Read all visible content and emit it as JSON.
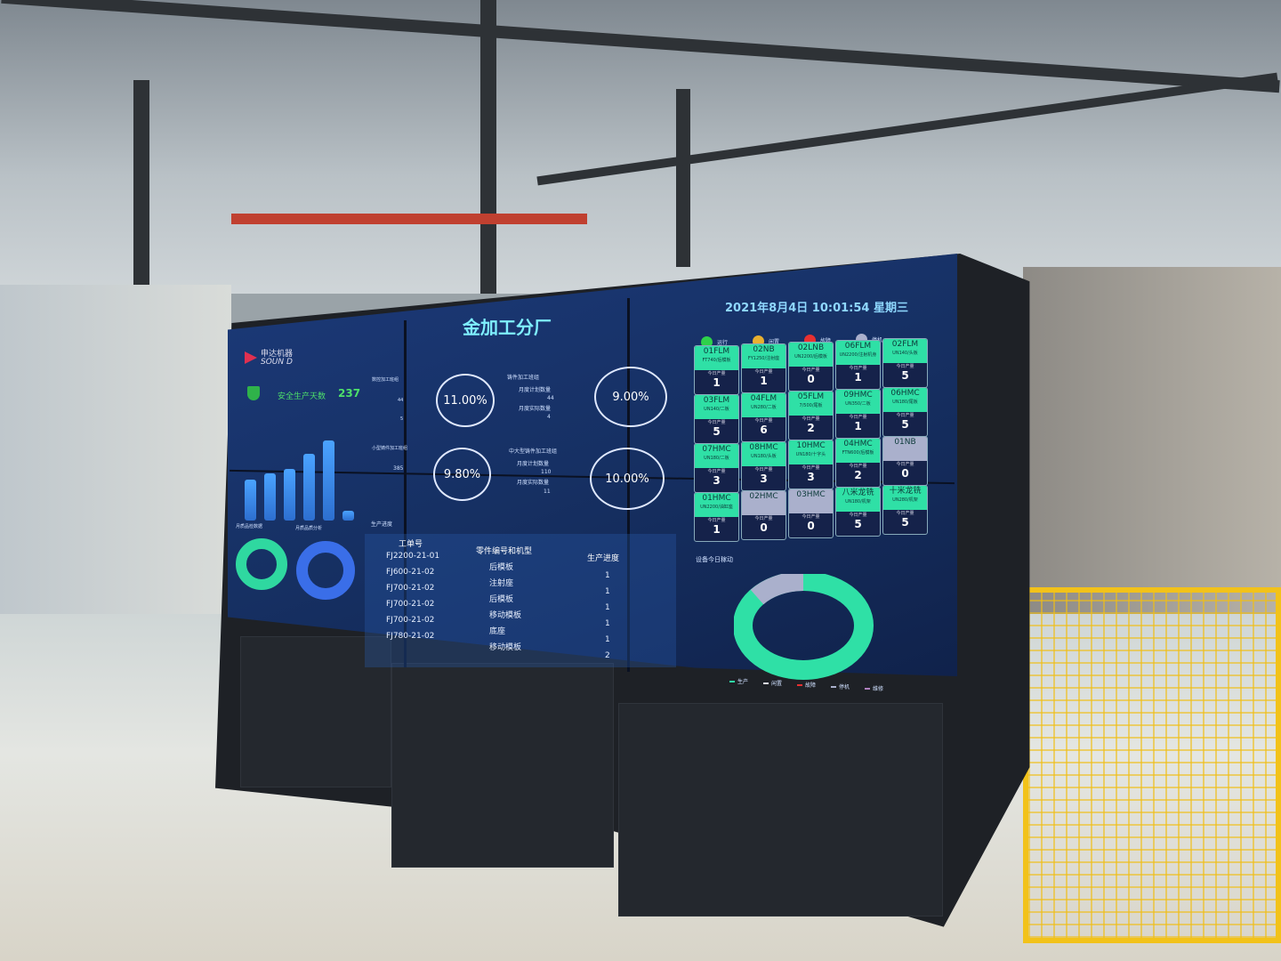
{
  "header": {
    "title": "金加工分厂",
    "datetime": "2021年8月4日 10:01:54 星期三"
  },
  "logo": {
    "cn": "申达机器",
    "en": "SOUN D"
  },
  "safety": {
    "label": "安全生产天数",
    "value": "237"
  },
  "bar_chart": {
    "values": [
      237,
      271,
      300,
      389,
      464,
      58
    ]
  },
  "donuts": {
    "left_title": "月质品检数据",
    "right_title": "月质品质分析"
  },
  "teams": [
    {
      "name": "铸件加工班组",
      "plan_label": "月度计划数量",
      "plan": "44",
      "actual_label": "月度实际数量",
      "actual": "4",
      "rate": "9.00%"
    },
    {
      "name": "中大型铸件加工班组",
      "plan_label": "月度计划数量",
      "plan": "110",
      "actual_label": "月度实际数量",
      "actual": "11",
      "rate": "10.00%"
    },
    {
      "name": "小型铸件加工班组",
      "plan": "385",
      "rate": "9.80%"
    },
    {
      "name": "数控加工班组",
      "plan": "44",
      "actual": "5",
      "rate": "11.00%"
    }
  ],
  "progress": {
    "title": "生产进度",
    "headers": [
      "工单号",
      "零件编号和机型",
      "生产进度"
    ],
    "rows": [
      [
        "FJ2200-21-01",
        "后模板",
        "1"
      ],
      [
        "FJ600-21-02",
        "注射座",
        "1"
      ],
      [
        "FJ700-21-02",
        "后模板",
        "1"
      ],
      [
        "FJ700-21-02",
        "移动模板",
        "1"
      ],
      [
        "FJ700-21-02",
        "底座",
        "1"
      ],
      [
        "FJ780-21-02",
        "移动模板",
        "2"
      ]
    ]
  },
  "legend": [
    {
      "label": "运行",
      "color": "#2ed24a"
    },
    {
      "label": "闲置",
      "color": "#e8b030"
    },
    {
      "label": "故障",
      "color": "#e83030"
    },
    {
      "label": "停机",
      "color": "#aab0cc"
    }
  ],
  "today_label": "今日产量",
  "machines": [
    {
      "id": "01FLM",
      "model": "FT740/后模板",
      "qty": "1",
      "status": "run"
    },
    {
      "id": "02NB",
      "model": "FY1250/注射座",
      "qty": "1",
      "status": "run"
    },
    {
      "id": "02LNB",
      "model": "UN2200/后模板",
      "qty": "0",
      "status": "run"
    },
    {
      "id": "06FLM",
      "model": "UN2200/注射机身",
      "qty": "1",
      "status": "run"
    },
    {
      "id": "02FLM",
      "model": "UN140/头板",
      "qty": "5",
      "status": "run"
    },
    {
      "id": "03FLM",
      "model": "UN140/二板",
      "qty": "5",
      "status": "run"
    },
    {
      "id": "04FLM",
      "model": "UN280/二板",
      "qty": "6",
      "status": "run"
    },
    {
      "id": "05FLM",
      "model": "7/500/尾板",
      "qty": "2",
      "status": "run"
    },
    {
      "id": "09HMC",
      "model": "UN350/二板",
      "qty": "1",
      "status": "run"
    },
    {
      "id": "06HMC",
      "model": "UN180/尾板",
      "qty": "5",
      "status": "run"
    },
    {
      "id": "07HMC",
      "model": "UN180/二板",
      "qty": "3",
      "status": "run"
    },
    {
      "id": "08HMC",
      "model": "UN180/头板",
      "qty": "3",
      "status": "run"
    },
    {
      "id": "10HMC",
      "model": "UN180/十字头",
      "qty": "3",
      "status": "run"
    },
    {
      "id": "04HMC",
      "model": "FTN600/后模板",
      "qty": "2",
      "status": "run"
    },
    {
      "id": "01NB",
      "model": "",
      "qty": "0",
      "status": "stop"
    },
    {
      "id": "01HMC",
      "model": "UN2200/油缸座",
      "qty": "1",
      "status": "run"
    },
    {
      "id": "02HMC",
      "model": "",
      "qty": "0",
      "status": "stop"
    },
    {
      "id": "03HMC",
      "model": "",
      "qty": "0",
      "status": "stop"
    },
    {
      "id": "八米龙铣",
      "model": "UN180/机架",
      "qty": "5",
      "status": "run"
    },
    {
      "id": "十米龙铣",
      "model": "UN280/机架",
      "qty": "5",
      "status": "run"
    }
  ],
  "utilization": {
    "title": "设备今日稼动",
    "legend": [
      "生产",
      "闲置",
      "故障",
      "停机",
      "维修"
    ],
    "shares": {
      "生产": 17,
      "停机": 3
    },
    "colors": {
      "生产": "#2fe0a6",
      "停机": "#aab0cc"
    }
  }
}
